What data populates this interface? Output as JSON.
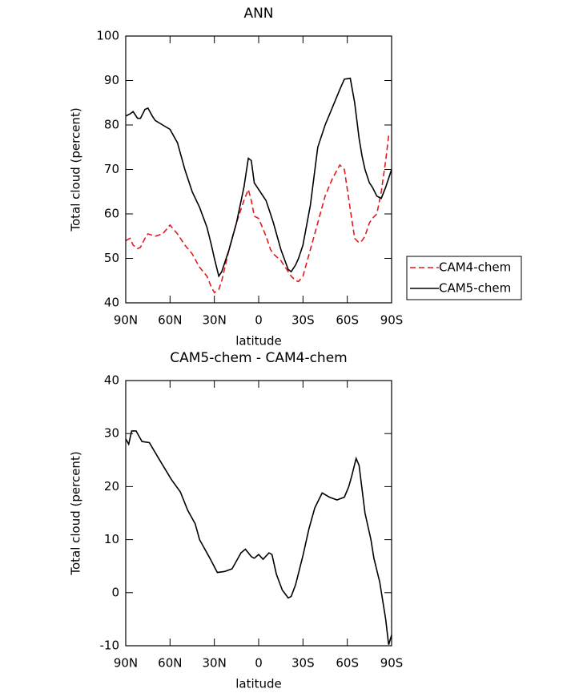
{
  "chart_data": [
    {
      "type": "line",
      "title": "ANN",
      "x_label": "latitude",
      "y_label": "Total cloud (percent)",
      "xlim": [
        90,
        -90
      ],
      "ylim": [
        40,
        100
      ],
      "xticks": [
        {
          "value": 90,
          "label": "90N"
        },
        {
          "value": 60,
          "label": "60N"
        },
        {
          "value": 30,
          "label": "30N"
        },
        0,
        {
          "value": -30,
          "label": "30S"
        },
        {
          "value": -60,
          "label": "60S"
        },
        {
          "value": -90,
          "label": "90S"
        }
      ],
      "yticks": [
        40,
        50,
        60,
        70,
        80,
        90,
        100
      ],
      "grid": false,
      "legend": "right",
      "x": [
        90,
        87,
        85,
        82,
        80,
        77,
        75,
        72,
        70,
        65,
        60,
        55,
        50,
        45,
        40,
        35,
        32,
        30,
        27,
        25,
        20,
        15,
        10,
        7,
        5,
        3,
        0,
        -5,
        -8,
        -10,
        -15,
        -20,
        -22,
        -25,
        -27,
        -30,
        -35,
        -40,
        -45,
        -50,
        -55,
        -58,
        -62,
        -65,
        -68,
        -70,
        -72,
        -73,
        -75,
        -77,
        -80,
        -83,
        -86,
        -88,
        -90
      ],
      "series": [
        {
          "name": "CAM4-chem",
          "color": "#e41a1c",
          "line_style": "dashed",
          "values": [
            54,
            54.5,
            53,
            52.2,
            52.5,
            54.5,
            55.5,
            55.2,
            55,
            55.5,
            57.5,
            55.5,
            53,
            51,
            48,
            46,
            43.5,
            42.3,
            43,
            45,
            52,
            58,
            63,
            65.5,
            63,
            59.5,
            59,
            55,
            52,
            51,
            49.5,
            47,
            46,
            45,
            44.8,
            46,
            52,
            58,
            64,
            68,
            71,
            70,
            61,
            54.5,
            53.5,
            54,
            55,
            56,
            58,
            59,
            60,
            65,
            72,
            77.5,
            78
          ]
        },
        {
          "name": "CAM5-chem",
          "color": "#000000",
          "line_style": "solid",
          "values": [
            82,
            82.5,
            83,
            81.5,
            81.5,
            83.5,
            83.8,
            82,
            81,
            80,
            79,
            76,
            70,
            65,
            61.5,
            57,
            53,
            50,
            46,
            47,
            52,
            58,
            66,
            72.5,
            72,
            67,
            65.5,
            63,
            60,
            58,
            52,
            47.5,
            47,
            48.5,
            50,
            53,
            62,
            75,
            80,
            84,
            88,
            90.3,
            90.5,
            85,
            77,
            73,
            70,
            69,
            67,
            66,
            64,
            63.5,
            66,
            68,
            70
          ]
        }
      ]
    },
    {
      "type": "line",
      "title": "CAM5-chem - CAM4-chem",
      "x_label": "latitude",
      "y_label": "Total cloud (percent)",
      "xlim": [
        90,
        -90
      ],
      "ylim": [
        -10,
        40
      ],
      "xticks": [
        {
          "value": 90,
          "label": "90N"
        },
        {
          "value": 60,
          "label": "60N"
        },
        {
          "value": 30,
          "label": "30N"
        },
        0,
        {
          "value": -30,
          "label": "30S"
        },
        {
          "value": -60,
          "label": "60S"
        },
        {
          "value": -90,
          "label": "90S"
        }
      ],
      "yticks": [
        -10,
        0,
        10,
        20,
        30,
        40
      ],
      "grid": false,
      "x": [
        90,
        88,
        86,
        83,
        79,
        74,
        67,
        59,
        53,
        48,
        43,
        40,
        33,
        28,
        23,
        18,
        12,
        9,
        5,
        3,
        0,
        -3,
        -7,
        -9,
        -12,
        -16,
        -20,
        -22,
        -25,
        -30,
        -34,
        -38,
        -43,
        -48,
        -53,
        -58,
        -61,
        -63,
        -66,
        -68,
        -72,
        -76,
        -78,
        -82,
        -86,
        -88,
        -90
      ],
      "series": [
        {
          "name": "CAM5-chem - CAM4-chem",
          "color": "#000000",
          "line_style": "solid",
          "values": [
            29,
            28,
            30.5,
            30.5,
            28.5,
            28.3,
            25,
            21.3,
            19,
            15.5,
            13,
            10,
            6.5,
            3.8,
            4,
            4.5,
            7.5,
            8.2,
            6.8,
            6.5,
            7.2,
            6.3,
            7.5,
            7.2,
            3.5,
            0.5,
            -1,
            -0.7,
            1.5,
            7,
            12,
            16,
            18.8,
            18,
            17.5,
            18,
            20,
            22,
            25.3,
            24,
            15,
            10,
            6.5,
            2,
            -5,
            -9.8,
            -8
          ]
        }
      ]
    }
  ]
}
